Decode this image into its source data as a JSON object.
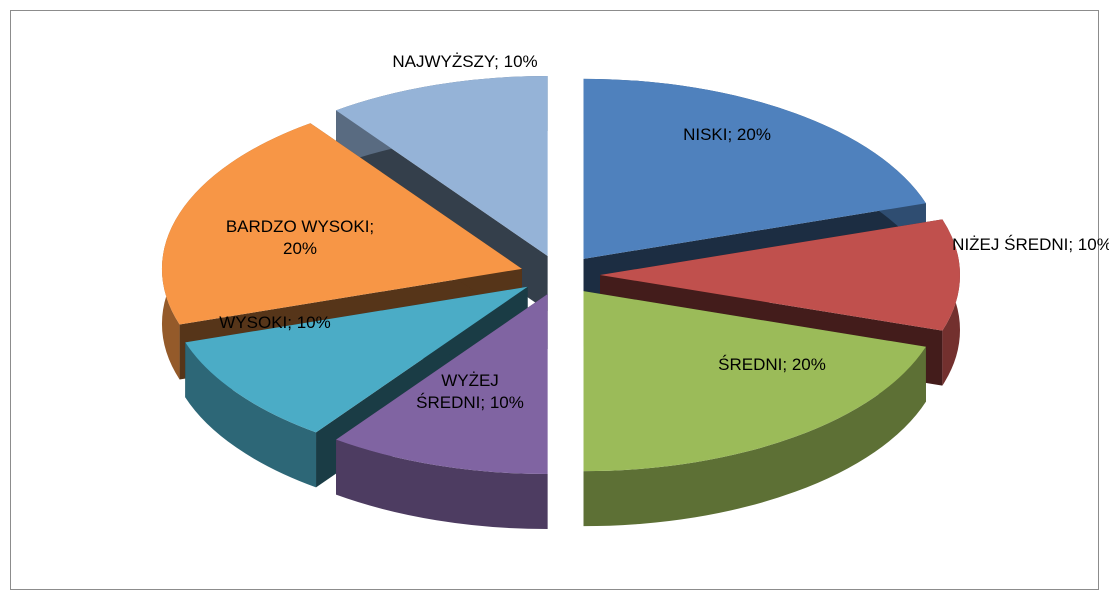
{
  "chart_data": {
    "type": "pie3d",
    "values": [
      20,
      10,
      20,
      10,
      10,
      20,
      10
    ],
    "value_labels": [
      "NISKI; 20%",
      "NIŻEJ ŚREDNI; 10%",
      "ŚREDNI; 20%",
      "WYŻEJ ŚREDNI; 10%",
      "WYSOKI; 10%",
      "BARDZO WYSOKI; 20%",
      "NAJWYŻSZY; 10%"
    ],
    "colors": [
      "#4f81bd",
      "#c0504d",
      "#9bbb59",
      "#8064a2",
      "#4bacc6",
      "#f79646",
      "#95b3d7"
    ]
  }
}
